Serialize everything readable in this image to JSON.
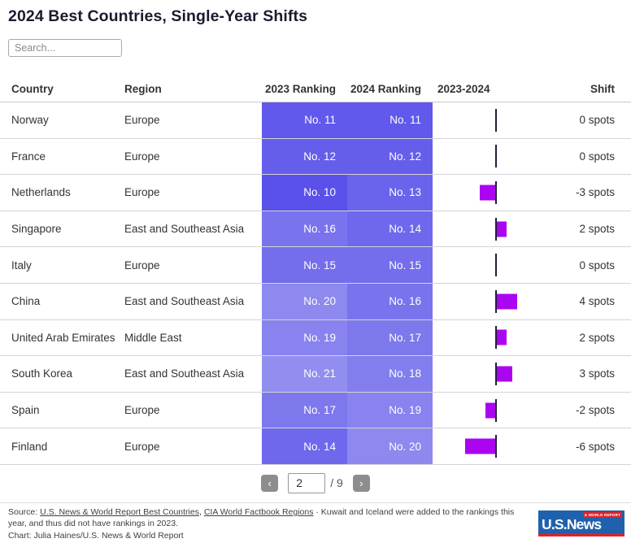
{
  "title": "2024 Best Countries, Single-Year Shifts",
  "search": {
    "placeholder": "Search..."
  },
  "table": {
    "columns": [
      "Country",
      "Region",
      "2023 Ranking",
      "2024 Ranking",
      "2023-2024",
      "Shift"
    ],
    "rows": [
      {
        "country": "Norway",
        "region": "Europe",
        "rank2023": 11,
        "rank2023_label": "No. 11",
        "rank2024": 11,
        "rank2024_label": "No. 11",
        "shift": 0,
        "shift_label": "0 spots"
      },
      {
        "country": "France",
        "region": "Europe",
        "rank2023": 12,
        "rank2023_label": "No. 12",
        "rank2024": 12,
        "rank2024_label": "No. 12",
        "shift": 0,
        "shift_label": "0 spots"
      },
      {
        "country": "Netherlands",
        "region": "Europe",
        "rank2023": 10,
        "rank2023_label": "No. 10",
        "rank2024": 13,
        "rank2024_label": "No. 13",
        "shift": -3,
        "shift_label": "-3 spots"
      },
      {
        "country": "Singapore",
        "region": "East and Southeast Asia",
        "rank2023": 16,
        "rank2023_label": "No. 16",
        "rank2024": 14,
        "rank2024_label": "No. 14",
        "shift": 2,
        "shift_label": "2 spots"
      },
      {
        "country": "Italy",
        "region": "Europe",
        "rank2023": 15,
        "rank2023_label": "No. 15",
        "rank2024": 15,
        "rank2024_label": "No. 15",
        "shift": 0,
        "shift_label": "0 spots"
      },
      {
        "country": "China",
        "region": "East and Southeast Asia",
        "rank2023": 20,
        "rank2023_label": "No. 20",
        "rank2024": 16,
        "rank2024_label": "No. 16",
        "shift": 4,
        "shift_label": "4 spots"
      },
      {
        "country": "United Arab Emirates",
        "region": "Middle East",
        "rank2023": 19,
        "rank2023_label": "No. 19",
        "rank2024": 17,
        "rank2024_label": "No. 17",
        "shift": 2,
        "shift_label": "2 spots"
      },
      {
        "country": "South Korea",
        "region": "East and Southeast Asia",
        "rank2023": 21,
        "rank2023_label": "No. 21",
        "rank2024": 18,
        "rank2024_label": "No. 18",
        "shift": 3,
        "shift_label": "3 spots"
      },
      {
        "country": "Spain",
        "region": "Europe",
        "rank2023": 17,
        "rank2023_label": "No. 17",
        "rank2024": 19,
        "rank2024_label": "No. 19",
        "shift": -2,
        "shift_label": "-2 spots"
      },
      {
        "country": "Finland",
        "region": "Europe",
        "rank2023": 14,
        "rank2023_label": "No. 14",
        "rank2024": 20,
        "rank2024_label": "No. 20",
        "shift": -6,
        "shift_label": "-6 spots"
      }
    ],
    "rank_colors": {
      "10": "#5a50ea",
      "11": "#6059eb",
      "12": "#655eeb",
      "13": "#6a63ec",
      "14": "#6f68ec",
      "15": "#746dec",
      "16": "#7973ed",
      "17": "#7e78ed",
      "18": "#837eee",
      "19": "#8883ee",
      "20": "#8d89ef",
      "21": "#928ef0"
    },
    "bar_color": "#ab04f1",
    "axis_color": "#20203a"
  },
  "chart_data": {
    "type": "bar",
    "title": "2024 Best Countries, Single-Year Shifts",
    "categories": [
      "Norway",
      "France",
      "Netherlands",
      "Singapore",
      "Italy",
      "China",
      "United Arab Emirates",
      "South Korea",
      "Spain",
      "Finland"
    ],
    "values": [
      0,
      0,
      -3,
      2,
      0,
      4,
      2,
      3,
      -2,
      -6
    ],
    "xlabel": "2023-2024",
    "ylabel": "Shift (spots)",
    "xlim": [
      -6,
      4
    ],
    "orientation": "horizontal",
    "grid": false,
    "legend": false
  },
  "pagination": {
    "prev_label": "‹",
    "next_label": "›",
    "current_page": "2",
    "total_label": "/ 9"
  },
  "footer": {
    "source_prefix": "Source: ",
    "link1": "U.S. News & World Report Best Countries",
    "separator1": ", ",
    "link2": "CIA World Factbook Regions",
    "note": " · Kuwait and Iceland were added to the rankings this year, and thus did not have rankings in 2023.",
    "credit": "Chart: Julia Haines/U.S. News & World Report",
    "logo": {
      "main": "U.S.News",
      "sub": "& WORLD REPORT",
      "blue": "#2061ae",
      "red": "#e22128"
    }
  }
}
